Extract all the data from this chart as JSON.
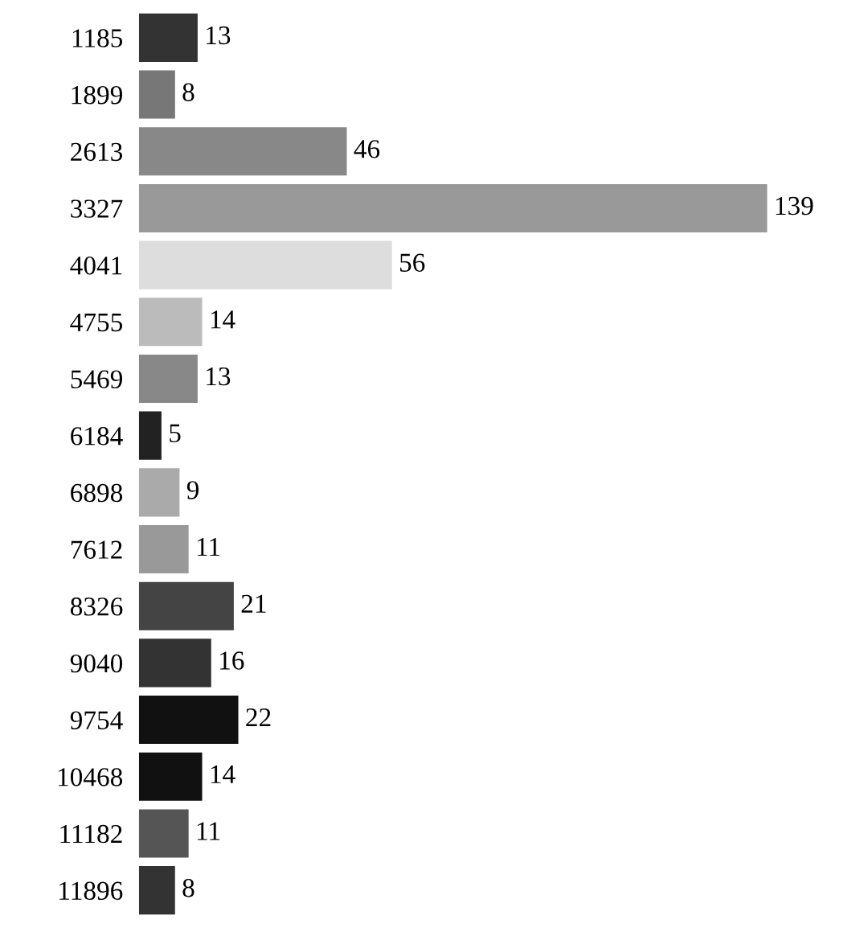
{
  "chart_data": {
    "type": "bar",
    "orientation": "horizontal",
    "categories": [
      "1185",
      "1899",
      "2613",
      "3327",
      "4041",
      "4755",
      "5469",
      "6184",
      "6898",
      "7612",
      "8326",
      "9040",
      "9754",
      "10468",
      "11182",
      "11896"
    ],
    "values": [
      13,
      8,
      46,
      139,
      56,
      14,
      13,
      5,
      9,
      11,
      21,
      16,
      22,
      14,
      11,
      8
    ],
    "colors": [
      "#333333",
      "#777777",
      "#888888",
      "#999999",
      "#dddddd",
      "#bbbbbb",
      "#888888",
      "#222222",
      "#aaaaaa",
      "#999999",
      "#444444",
      "#333333",
      "#111111",
      "#111111",
      "#555555",
      "#333333"
    ],
    "data_labels": true,
    "tick_labels": "y",
    "grid": false,
    "legend": false
  }
}
